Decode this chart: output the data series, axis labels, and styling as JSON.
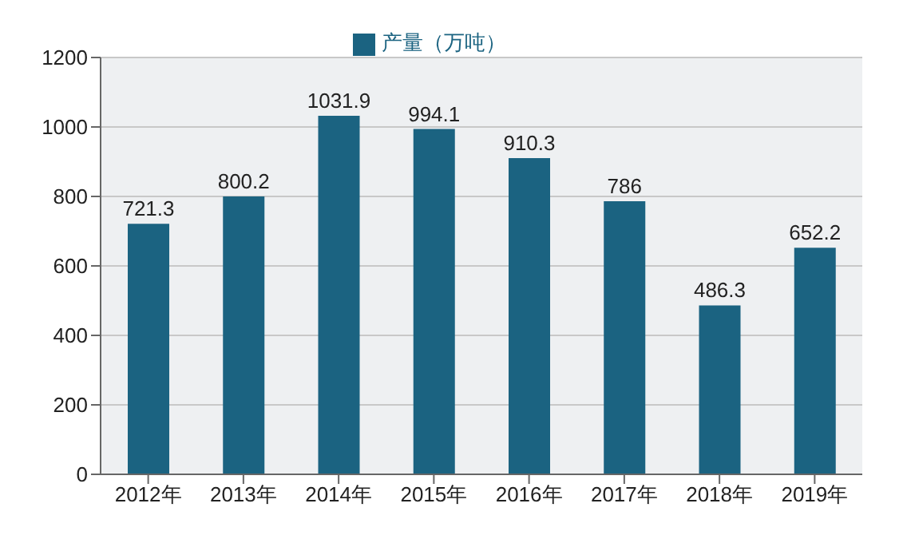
{
  "chart_data": {
    "type": "bar",
    "categories": [
      "2012年",
      "2013年",
      "2014年",
      "2015年",
      "2016年",
      "2017年",
      "2018年",
      "2019年"
    ],
    "series": [
      {
        "name": "产量（万吨）",
        "color": "#1b6381",
        "values": [
          721.3,
          800.2,
          1031.9,
          994.1,
          910.3,
          786,
          486.3,
          652.2
        ]
      }
    ],
    "ylim": [
      0,
      1200
    ],
    "yticks": [
      0,
      200,
      400,
      600,
      800,
      1000,
      1200
    ],
    "grid": "y",
    "legend": "top",
    "data_labels": true
  }
}
